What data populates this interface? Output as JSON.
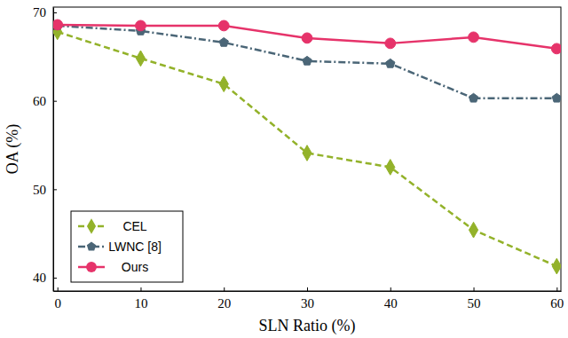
{
  "chart_data": {
    "type": "line",
    "x_label": "SLN Ratio (%)",
    "y_label": "OA (%)",
    "x": [
      0,
      10,
      20,
      30,
      40,
      50,
      60
    ],
    "xlim": [
      -0.5,
      60.5
    ],
    "xticks": [
      0,
      10,
      20,
      30,
      40,
      50,
      60
    ],
    "ylim": [
      38.5,
      70.6
    ],
    "yticks": [
      40,
      50,
      60,
      70
    ],
    "grid": false,
    "legend": "bottom-left",
    "series": [
      {
        "name": "CEL",
        "color": "#93b22a",
        "marker": "diamond",
        "line_style": "dashed",
        "values": [
          67.8,
          64.8,
          61.9,
          54.1,
          52.5,
          45.4,
          41.3
        ]
      },
      {
        "name": "LWNC [8]",
        "color": "#4b6677",
        "marker": "pentagon",
        "line_style": "dashdot",
        "values": [
          68.5,
          67.9,
          66.6,
          64.5,
          64.2,
          60.3,
          60.3
        ]
      },
      {
        "name": "Ours",
        "color": "#e6336a",
        "marker": "circle",
        "line_style": "solid",
        "values": [
          68.6,
          68.5,
          68.5,
          67.1,
          66.5,
          67.2,
          65.9
        ]
      }
    ]
  }
}
